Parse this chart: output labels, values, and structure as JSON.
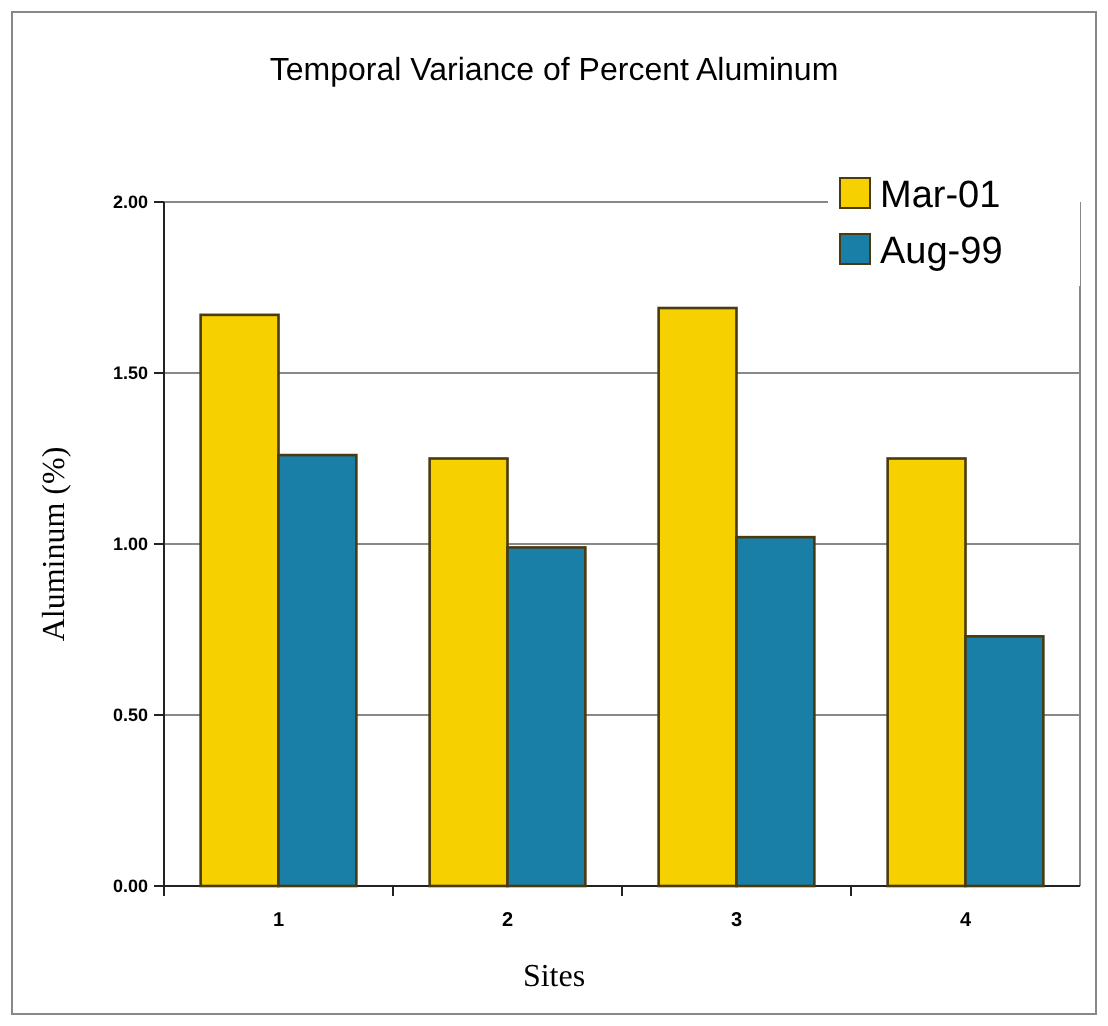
{
  "chart_data": {
    "type": "bar",
    "title": "Temporal Variance of Percent Aluminum",
    "xlabel": "Sites",
    "ylabel": "Aluminum (%)",
    "categories": [
      "1",
      "2",
      "3",
      "4"
    ],
    "series": [
      {
        "name": "Mar-01",
        "color": "#f7d000",
        "values": [
          1.67,
          1.25,
          1.69,
          1.25
        ]
      },
      {
        "name": "Aug-99",
        "color": "#1a7fa6",
        "values": [
          1.26,
          0.99,
          1.02,
          0.73
        ]
      }
    ],
    "ylim": [
      0,
      2
    ],
    "yticks": [
      {
        "value": 0,
        "label": "0.00"
      },
      {
        "value": 0.5,
        "label": "0.50"
      },
      {
        "value": 1,
        "label": "1.00"
      },
      {
        "value": 1.5,
        "label": "1.50"
      },
      {
        "value": 2,
        "label": "2.00"
      }
    ],
    "grid": "y",
    "legend": "top right"
  }
}
